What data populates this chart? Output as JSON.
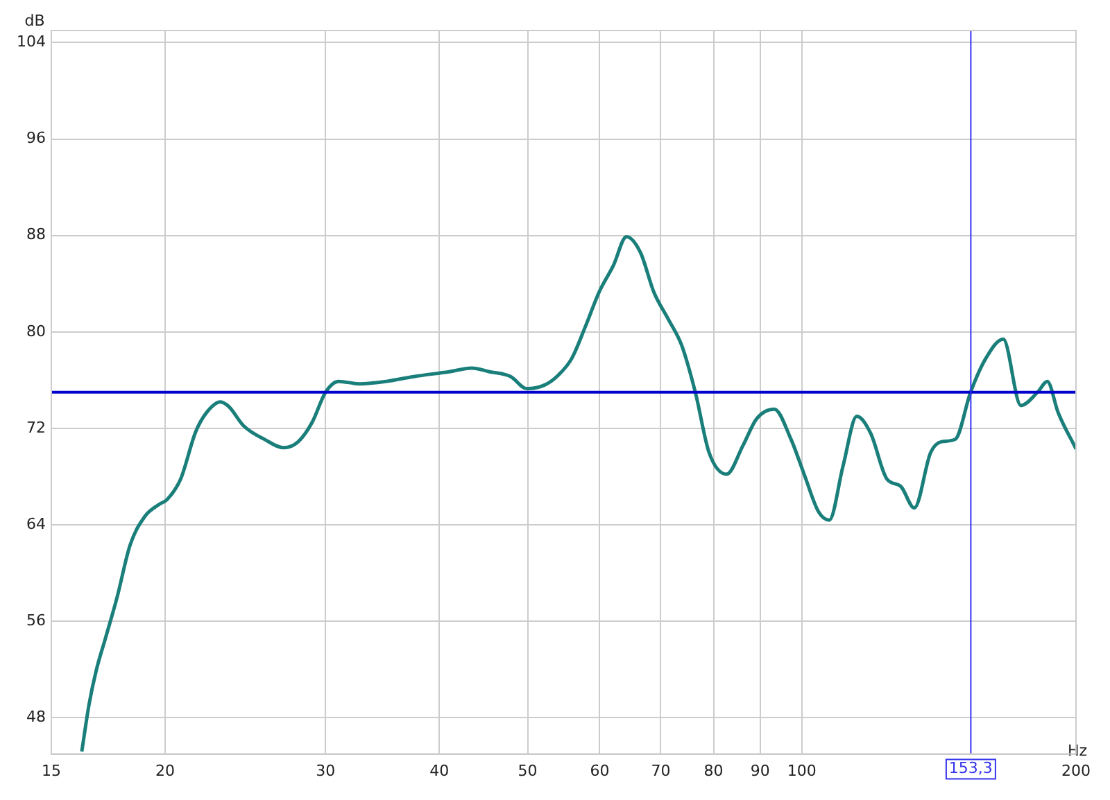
{
  "chart_data": {
    "type": "line",
    "xlabel": "Hz",
    "ylabel": "dB",
    "x": [
      16.2,
      16.5,
      16.8,
      17.2,
      17.7,
      18.3,
      19.0,
      19.7,
      20.1,
      20.8,
      21.6,
      22.2,
      23.0,
      23.5,
      24.4,
      25.7,
      27.0,
      28.0,
      29.0,
      30.0,
      31.0,
      32.7,
      35.0,
      37.5,
      41.0,
      43.4,
      45.4,
      47.9,
      49.9,
      52.2,
      54.0,
      55.9,
      57.9,
      59.9,
      62.1,
      64.2,
      66.5,
      68.8,
      71.3,
      73.8,
      76.4,
      79.1,
      82.7,
      86.2,
      89.2,
      93.3,
      97.3,
      100.7,
      104.3,
      107.2,
      111.0,
      114.9,
      119.0,
      124.0,
      128.4,
      132.9,
      138.5,
      142.4,
      147.4,
      153.2,
      159.2,
      166.4,
      174.0,
      181.5,
      186.0,
      191.2,
      200
    ],
    "series": [
      {
        "color": "#1a7f7a",
        "values": [
          45.2,
          49.1,
          51.9,
          54.6,
          57.9,
          62.3,
          64.7,
          65.7,
          66.1,
          67.8,
          71.7,
          73.3,
          74.2,
          73.8,
          72.2,
          71.1,
          70.4,
          70.9,
          72.5,
          75.0,
          75.9,
          75.7,
          75.9,
          76.3,
          76.7,
          77.0,
          76.7,
          76.3,
          75.3,
          75.6,
          76.4,
          77.8,
          80.5,
          83.3,
          85.5,
          87.9,
          86.6,
          83.3,
          81.1,
          78.9,
          75.0,
          70.0,
          68.2,
          70.6,
          72.8,
          73.6,
          71.1,
          68.1,
          65.1,
          64.4,
          68.9,
          73.0,
          71.6,
          67.8,
          67.2,
          65.4,
          70.0,
          70.9,
          71.1,
          75.0,
          77.8,
          79.4,
          73.9,
          75.0,
          75.9,
          73.3,
          70.3
        ]
      }
    ],
    "log": "x",
    "xlim": [
      15,
      200
    ],
    "xticks": [
      15,
      20,
      30,
      40,
      50,
      60,
      70,
      80,
      90,
      100,
      200
    ],
    "ylim": [
      45,
      105
    ],
    "yticks": [
      48,
      56,
      64,
      72,
      80,
      88,
      96,
      104
    ],
    "grid": true,
    "marker": "none",
    "line_style": "solid",
    "ref_lines": [
      {
        "axis": "y",
        "value": 75,
        "color": "#0000cc"
      },
      {
        "axis": "x",
        "value": 153.3,
        "label": "153,3",
        "color": "#3333ee"
      }
    ]
  }
}
